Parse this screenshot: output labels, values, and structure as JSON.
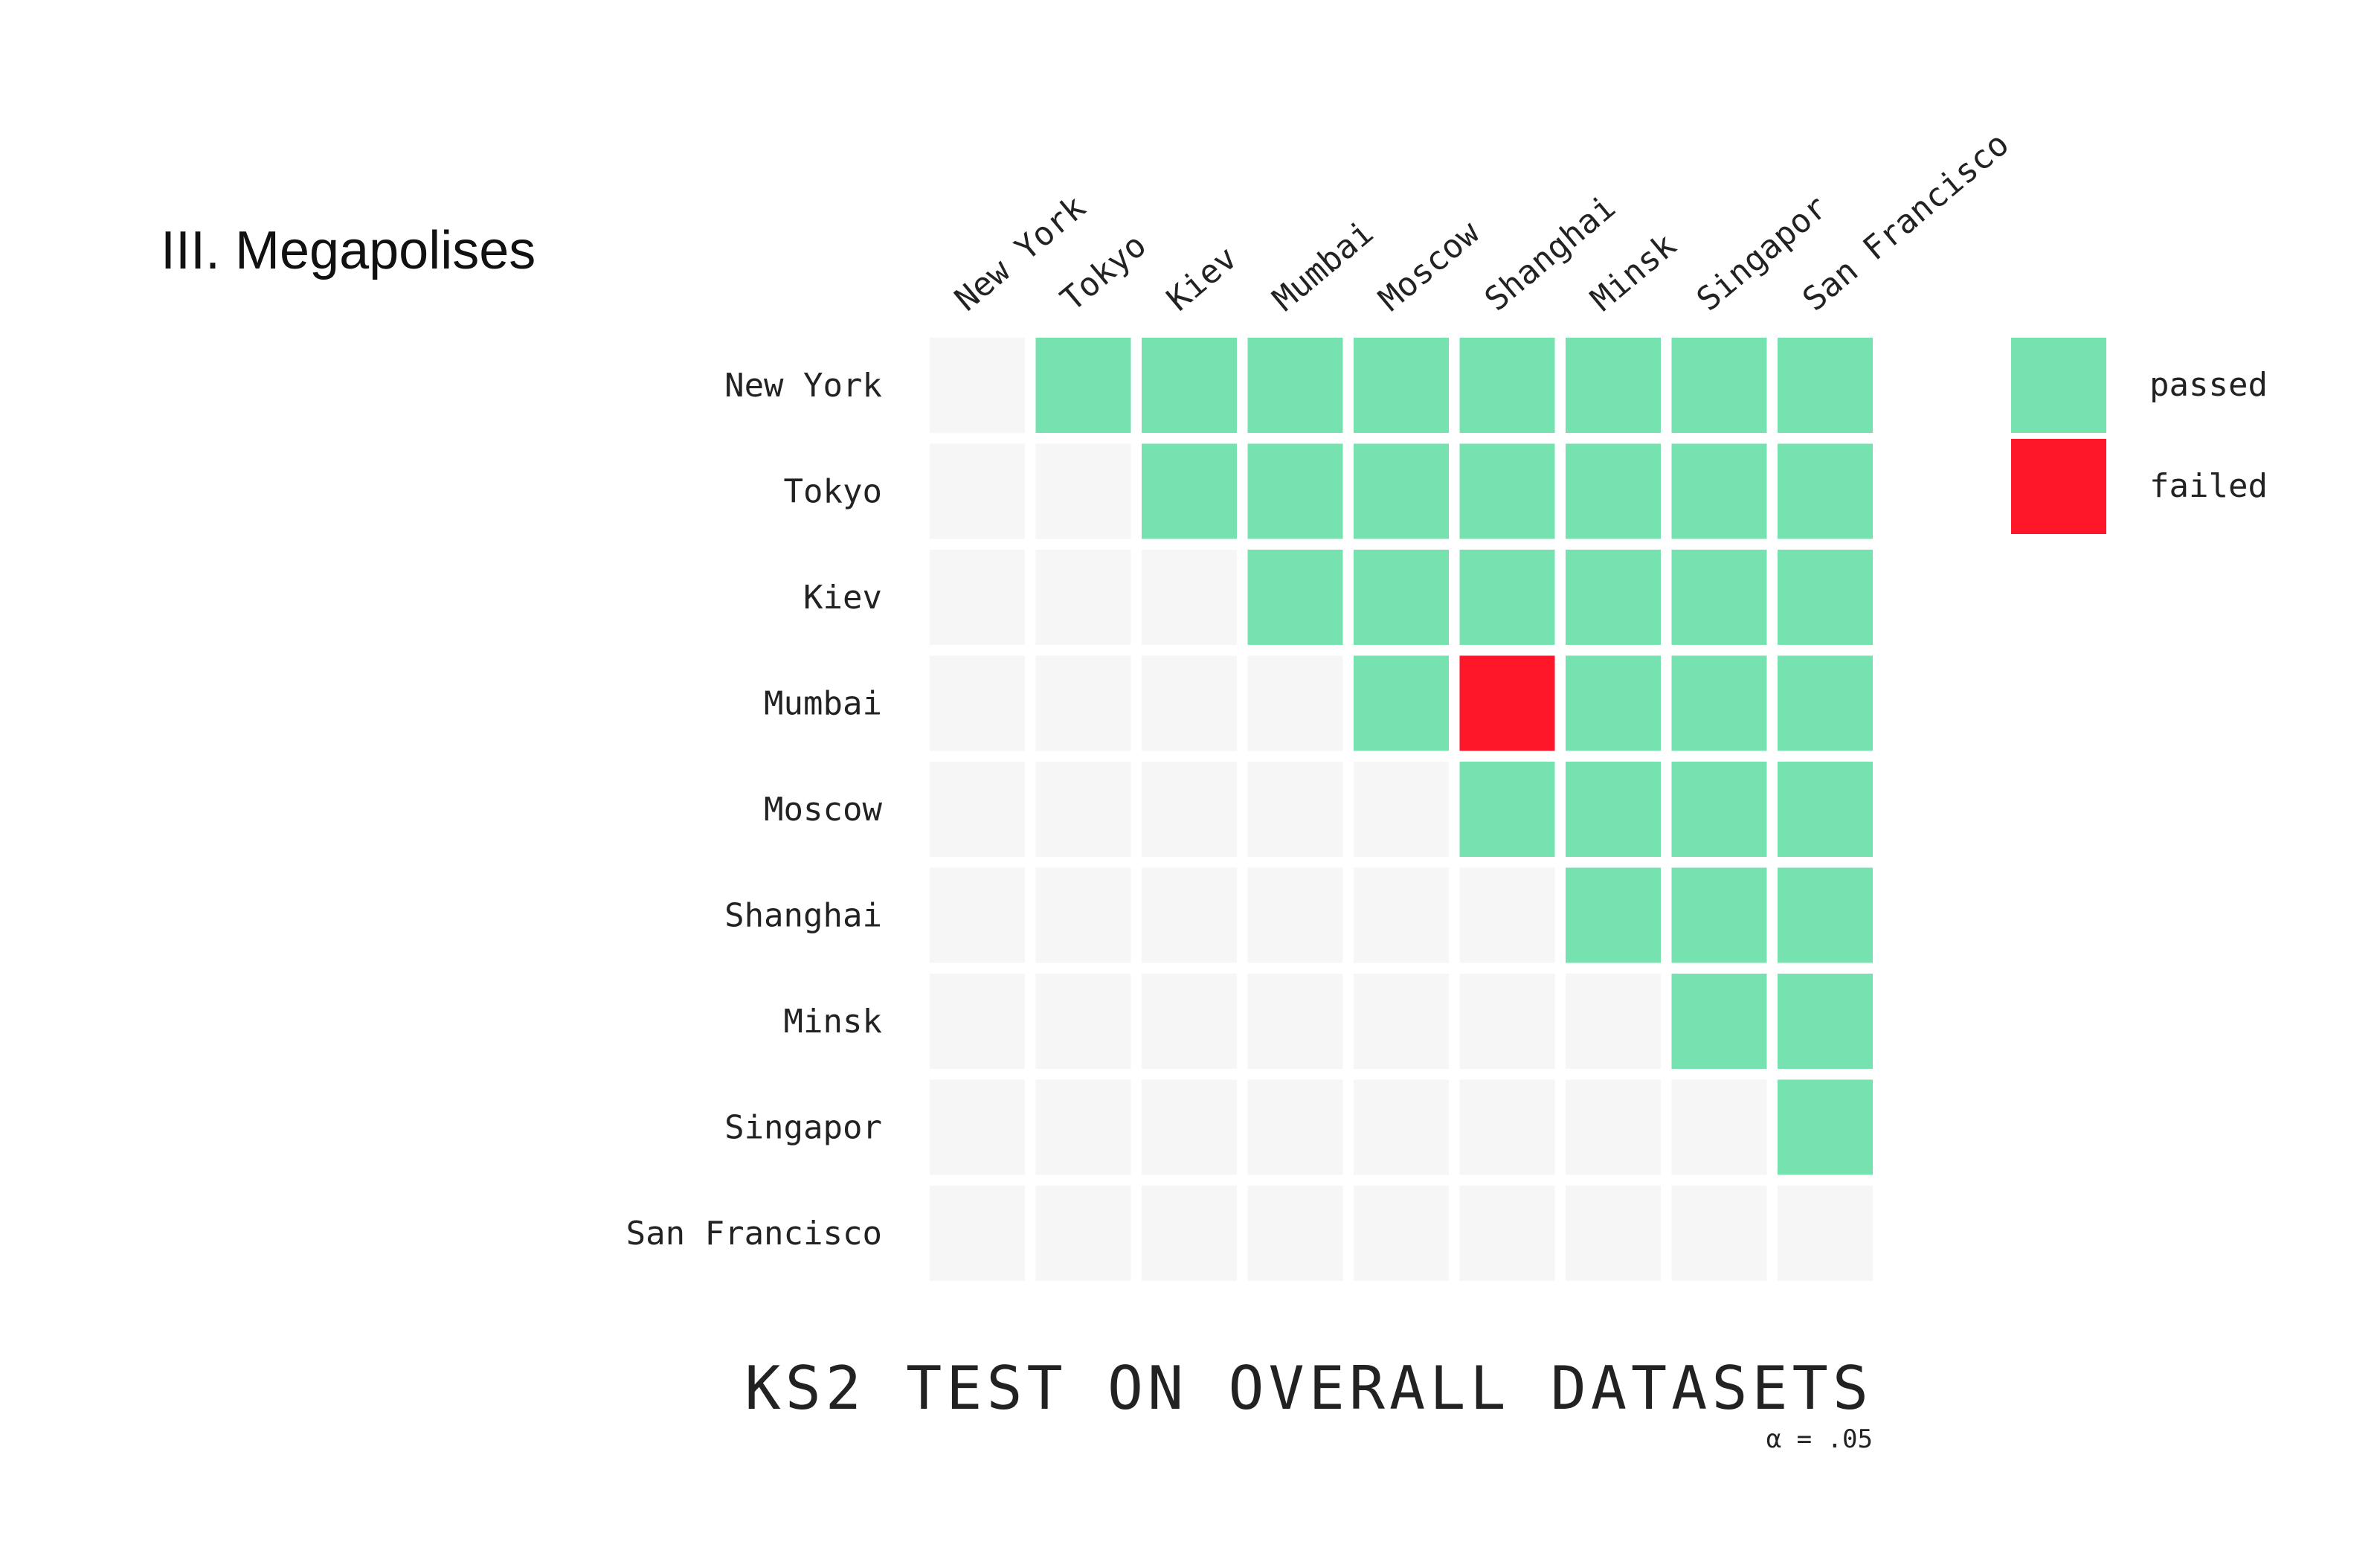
{
  "section_title": "III. Megapolises",
  "colors": {
    "passed": "#76e2b0",
    "failed": "#fd1729",
    "empty": "#f6f6f6",
    "text": "#222222"
  },
  "chart_data": {
    "type": "heatmap",
    "title": "KS2 TEST ON OVERALL DATASETS",
    "subtitle": "α = .05",
    "rows": [
      "New York",
      "Tokyo",
      "Kiev",
      "Mumbai",
      "Moscow",
      "Shanghai",
      "Minsk",
      "Singapor",
      "San Francisco"
    ],
    "columns": [
      "New York",
      "Tokyo",
      "Kiev",
      "Mumbai",
      "Moscow",
      "Shanghai",
      "Minsk",
      "Singapor",
      "San Francisco"
    ],
    "matrix": [
      [
        null,
        "passed",
        "passed",
        "passed",
        "passed",
        "passed",
        "passed",
        "passed",
        "passed"
      ],
      [
        null,
        null,
        "passed",
        "passed",
        "passed",
        "passed",
        "passed",
        "passed",
        "passed"
      ],
      [
        null,
        null,
        null,
        "passed",
        "passed",
        "passed",
        "passed",
        "passed",
        "passed"
      ],
      [
        null,
        null,
        null,
        null,
        "passed",
        "failed",
        "passed",
        "passed",
        "passed"
      ],
      [
        null,
        null,
        null,
        null,
        null,
        "passed",
        "passed",
        "passed",
        "passed"
      ],
      [
        null,
        null,
        null,
        null,
        null,
        null,
        "passed",
        "passed",
        "passed"
      ],
      [
        null,
        null,
        null,
        null,
        null,
        null,
        null,
        "passed",
        "passed"
      ],
      [
        null,
        null,
        null,
        null,
        null,
        null,
        null,
        null,
        "passed"
      ],
      [
        null,
        null,
        null,
        null,
        null,
        null,
        null,
        null,
        null
      ]
    ],
    "legend": [
      {
        "key": "passed",
        "label": "passed"
      },
      {
        "key": "failed",
        "label": "failed"
      }
    ],
    "legend_position": "top-right"
  }
}
